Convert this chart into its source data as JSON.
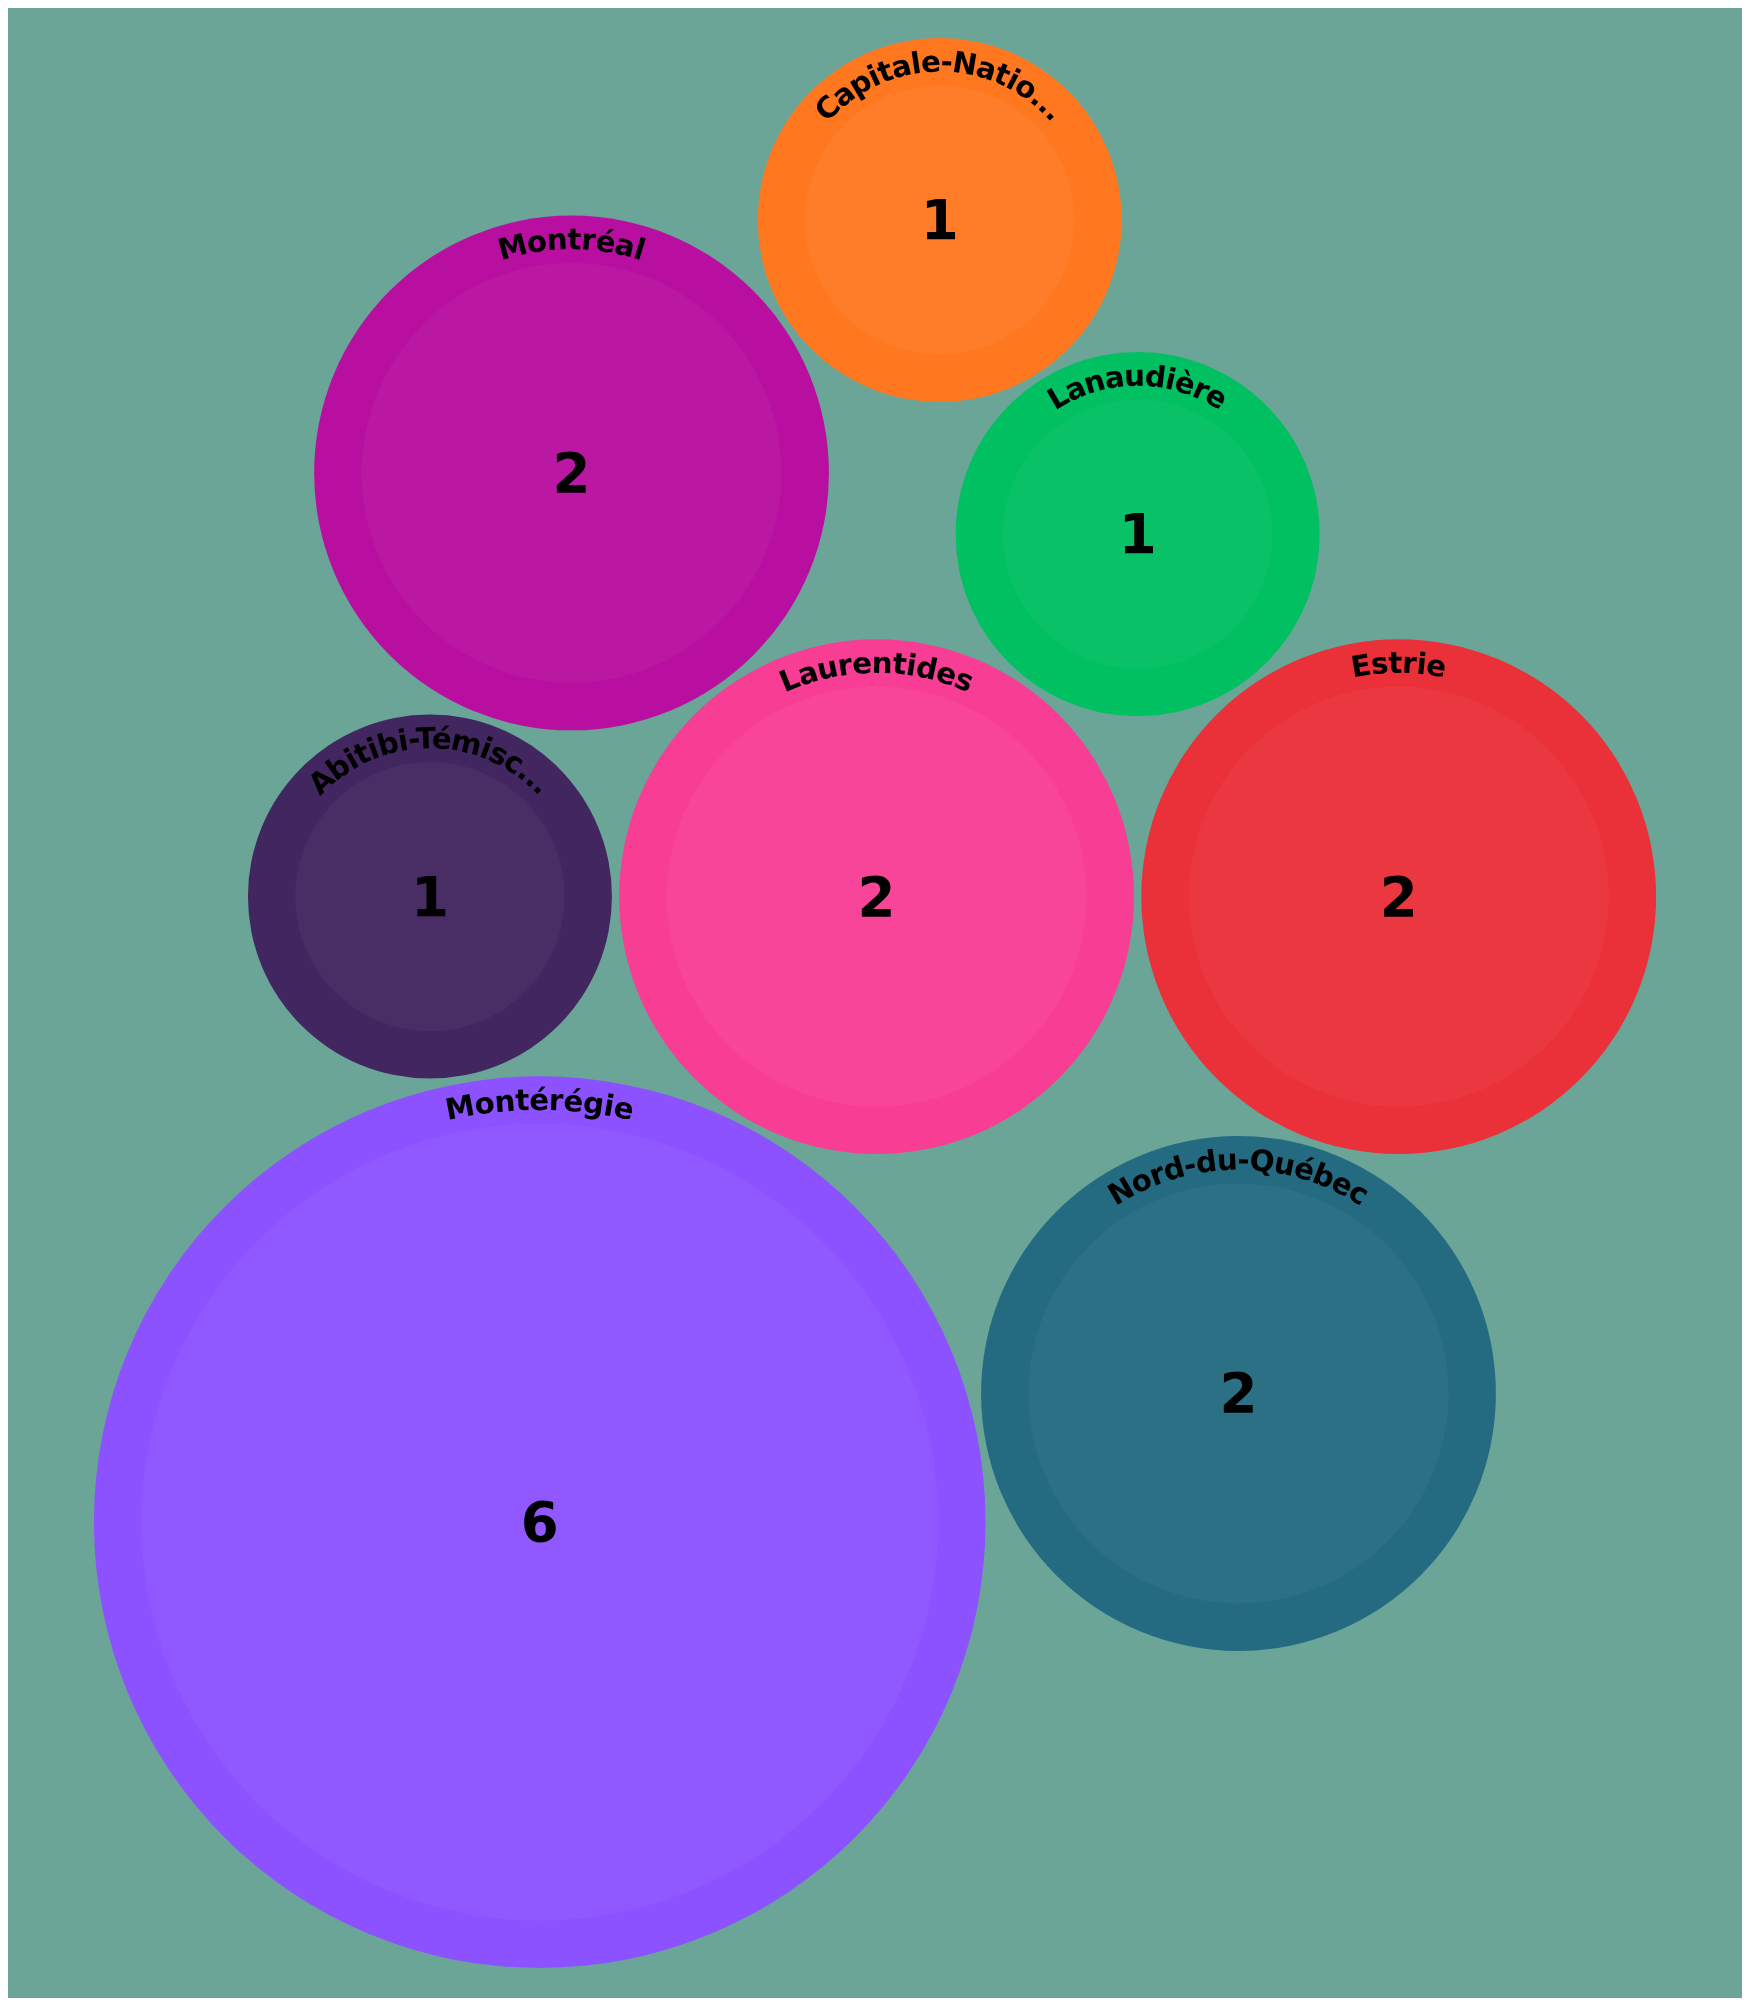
{
  "chart_data": {
    "type": "other",
    "categories": [
      "Laurentides",
      "Estrie",
      "Abitibi-Témisc...",
      "Montérégie",
      "Montréal",
      "Lanaudière",
      "Nord-du-Québec",
      "Capitale-Natio..."
    ],
    "values": [
      2,
      2,
      1,
      6,
      2,
      1,
      2,
      1
    ],
    "colors": [
      "#f83d95",
      "#ea3038",
      "#42265f",
      "#8c52ff",
      "#b80fa0",
      "#00c062",
      "#246b82",
      "#ff7820"
    ],
    "data_labels": true
  }
}
